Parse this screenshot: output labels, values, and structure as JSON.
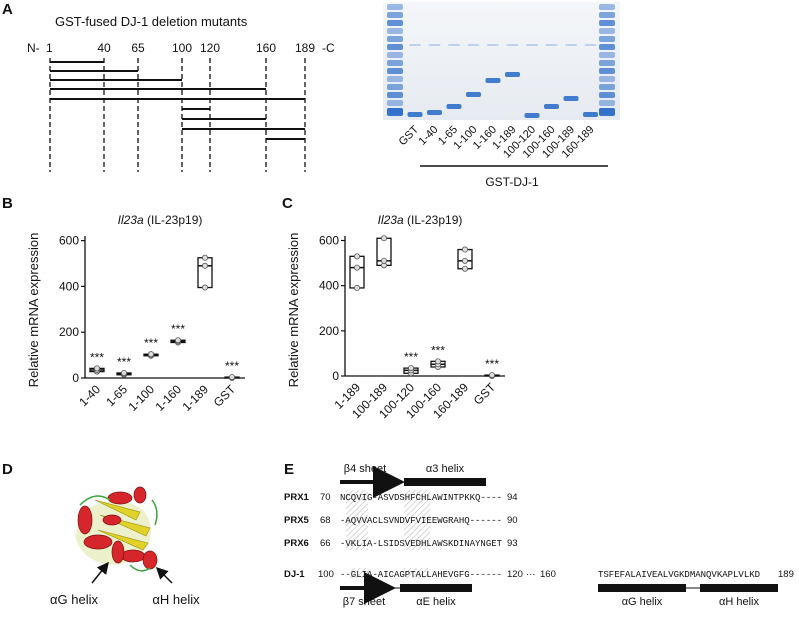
{
  "panel_labels": [
    "A",
    "B",
    "C",
    "D",
    "E"
  ],
  "panel_a": {
    "title": "GST-fused DJ-1 deletion mutants",
    "scale_labels": [
      "N-",
      "1",
      "40",
      "65",
      "100",
      "120",
      "160",
      "189",
      "-C"
    ],
    "gel_lanes": [
      "GST",
      "1-40",
      "1-65",
      "1-100",
      "1-160",
      "1-189",
      "100-120",
      "100-160",
      "100-189",
      "160-189"
    ],
    "gel_group": "GST-DJ-1"
  },
  "chart_data": [
    {
      "type": "box",
      "gene": "Il23a",
      "title": "(IL-23p19)",
      "y_label": "Relative mRNA expression",
      "categories": [
        "1-40",
        "1-65",
        "1-100",
        "1-160",
        "1-189",
        "GST"
      ],
      "min": [
        28,
        14,
        97,
        155,
        395,
        0
      ],
      "median": [
        35,
        18,
        100,
        160,
        490,
        2
      ],
      "max": [
        42,
        22,
        104,
        165,
        525,
        4
      ],
      "points": [
        [
          28,
          35,
          42
        ],
        [
          14,
          18,
          22
        ],
        [
          97,
          100,
          104
        ],
        [
          155,
          160,
          165
        ],
        [
          395,
          490,
          525
        ],
        [
          0,
          2,
          4
        ]
      ],
      "annotations": [
        "***",
        "***",
        "***",
        "***",
        null,
        "***"
      ],
      "ylim": [
        0,
        620
      ],
      "yticks": [
        0,
        200,
        400,
        600
      ]
    },
    {
      "type": "box",
      "gene": "Il23a",
      "title": "(IL-23p19)",
      "y_label": "Relative mRNA expression",
      "categories": [
        "1-189",
        "100-189",
        "100-120",
        "100-160",
        "160-189",
        "GST"
      ],
      "min": [
        390,
        490,
        12,
        40,
        475,
        0
      ],
      "median": [
        480,
        510,
        25,
        52,
        510,
        2
      ],
      "max": [
        530,
        610,
        35,
        65,
        560,
        4
      ],
      "points": [
        [
          390,
          480,
          530
        ],
        [
          490,
          510,
          610
        ],
        [
          12,
          25,
          35
        ],
        [
          40,
          52,
          65
        ],
        [
          475,
          510,
          560
        ],
        [
          0,
          2,
          4
        ]
      ],
      "annotations": [
        null,
        null,
        "***",
        "***",
        null,
        "***"
      ],
      "ylim": [
        0,
        620
      ],
      "yticks": [
        0,
        200,
        400,
        600
      ]
    }
  ],
  "panel_d": {
    "labels": [
      "αG helix",
      "αH helix"
    ]
  },
  "panel_e": {
    "top_labels": [
      "β4 sheet",
      "α3 helix"
    ],
    "rows": [
      {
        "name": "PRX1",
        "start": 70,
        "sequence": "NCQVIG-ASVDSHFCHLAWINTPKKQ----",
        "end": 94
      },
      {
        "name": "PRX5",
        "start": 68,
        "sequence": "-AQVVACLSVNDVFVIEEWGRAHQ------",
        "end": 90
      },
      {
        "name": "PRX6",
        "start": 66,
        "sequence": "-VKLIA-LSIDSVEDHLAWSKDINAYNGET",
        "end": 93
      }
    ],
    "dj1": {
      "name": "DJ-1",
      "start": 100,
      "sequence": "--GLIA-AICAGPTALLAHEVGFG------",
      "end": 120,
      "start2": 160,
      "sequence2": "TSFEFALAIVEALVGKDMANQVKAPLVLKD",
      "end2": 189
    },
    "bottom_labels": [
      "β7 sheet",
      "αE helix",
      "αG helix",
      "αH helix"
    ]
  }
}
